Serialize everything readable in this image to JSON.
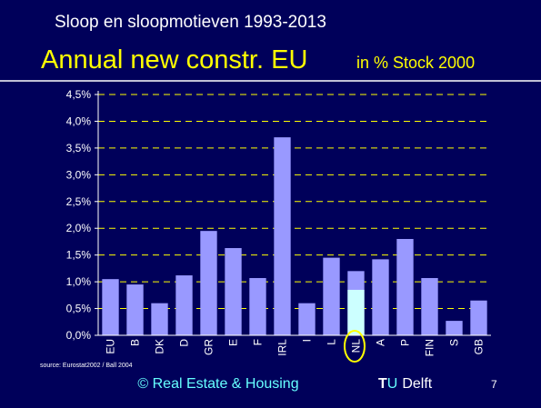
{
  "heading": "Sloop en sloopmotieven 1993-2013",
  "chart_data": {
    "type": "bar",
    "title": "Annual new constr. EU",
    "subtitle": "in % Stock 2000",
    "categories": [
      "EU",
      "B",
      "DK",
      "D",
      "GR",
      "E",
      "F",
      "IRL",
      "I",
      "L",
      "NL",
      "A",
      "P",
      "FIN",
      "S",
      "GB"
    ],
    "series": [
      {
        "color": "#9999ff",
        "values": [
          1.05,
          0.95,
          0.6,
          1.12,
          1.95,
          1.63,
          1.07,
          3.7,
          0.6,
          1.45,
          1.2,
          1.42,
          1.8,
          1.07,
          0.27,
          0.65
        ]
      },
      {
        "color": "#ccffff",
        "values": [
          null,
          null,
          null,
          null,
          null,
          null,
          null,
          null,
          null,
          null,
          0.85,
          null,
          null,
          null,
          null,
          null
        ]
      }
    ],
    "ylim": [
      0,
      4.5
    ],
    "yticks": [
      {
        "value": 0,
        "label": "0,0%"
      },
      {
        "value": 0.5,
        "label": "0,5%"
      },
      {
        "value": 1,
        "label": "1,0%"
      },
      {
        "value": 1.5,
        "label": "1,5%"
      },
      {
        "value": 2,
        "label": "2,0%"
      },
      {
        "value": 2.5,
        "label": "2,5%"
      },
      {
        "value": 3,
        "label": "3,0%"
      },
      {
        "value": 3.5,
        "label": "3,5%"
      },
      {
        "value": 4,
        "label": "4,0%"
      },
      {
        "value": 4.5,
        "label": "4,5%"
      }
    ],
    "grid": true,
    "grid_color": "#ffff00",
    "source": "source: Eurostat2002 / Ball 2004"
  },
  "footer": {
    "credit": "© Real Estate & Housing",
    "brand_t": "T",
    "brand_u": "U",
    "brand_rest": "Delft",
    "page": "7"
  }
}
